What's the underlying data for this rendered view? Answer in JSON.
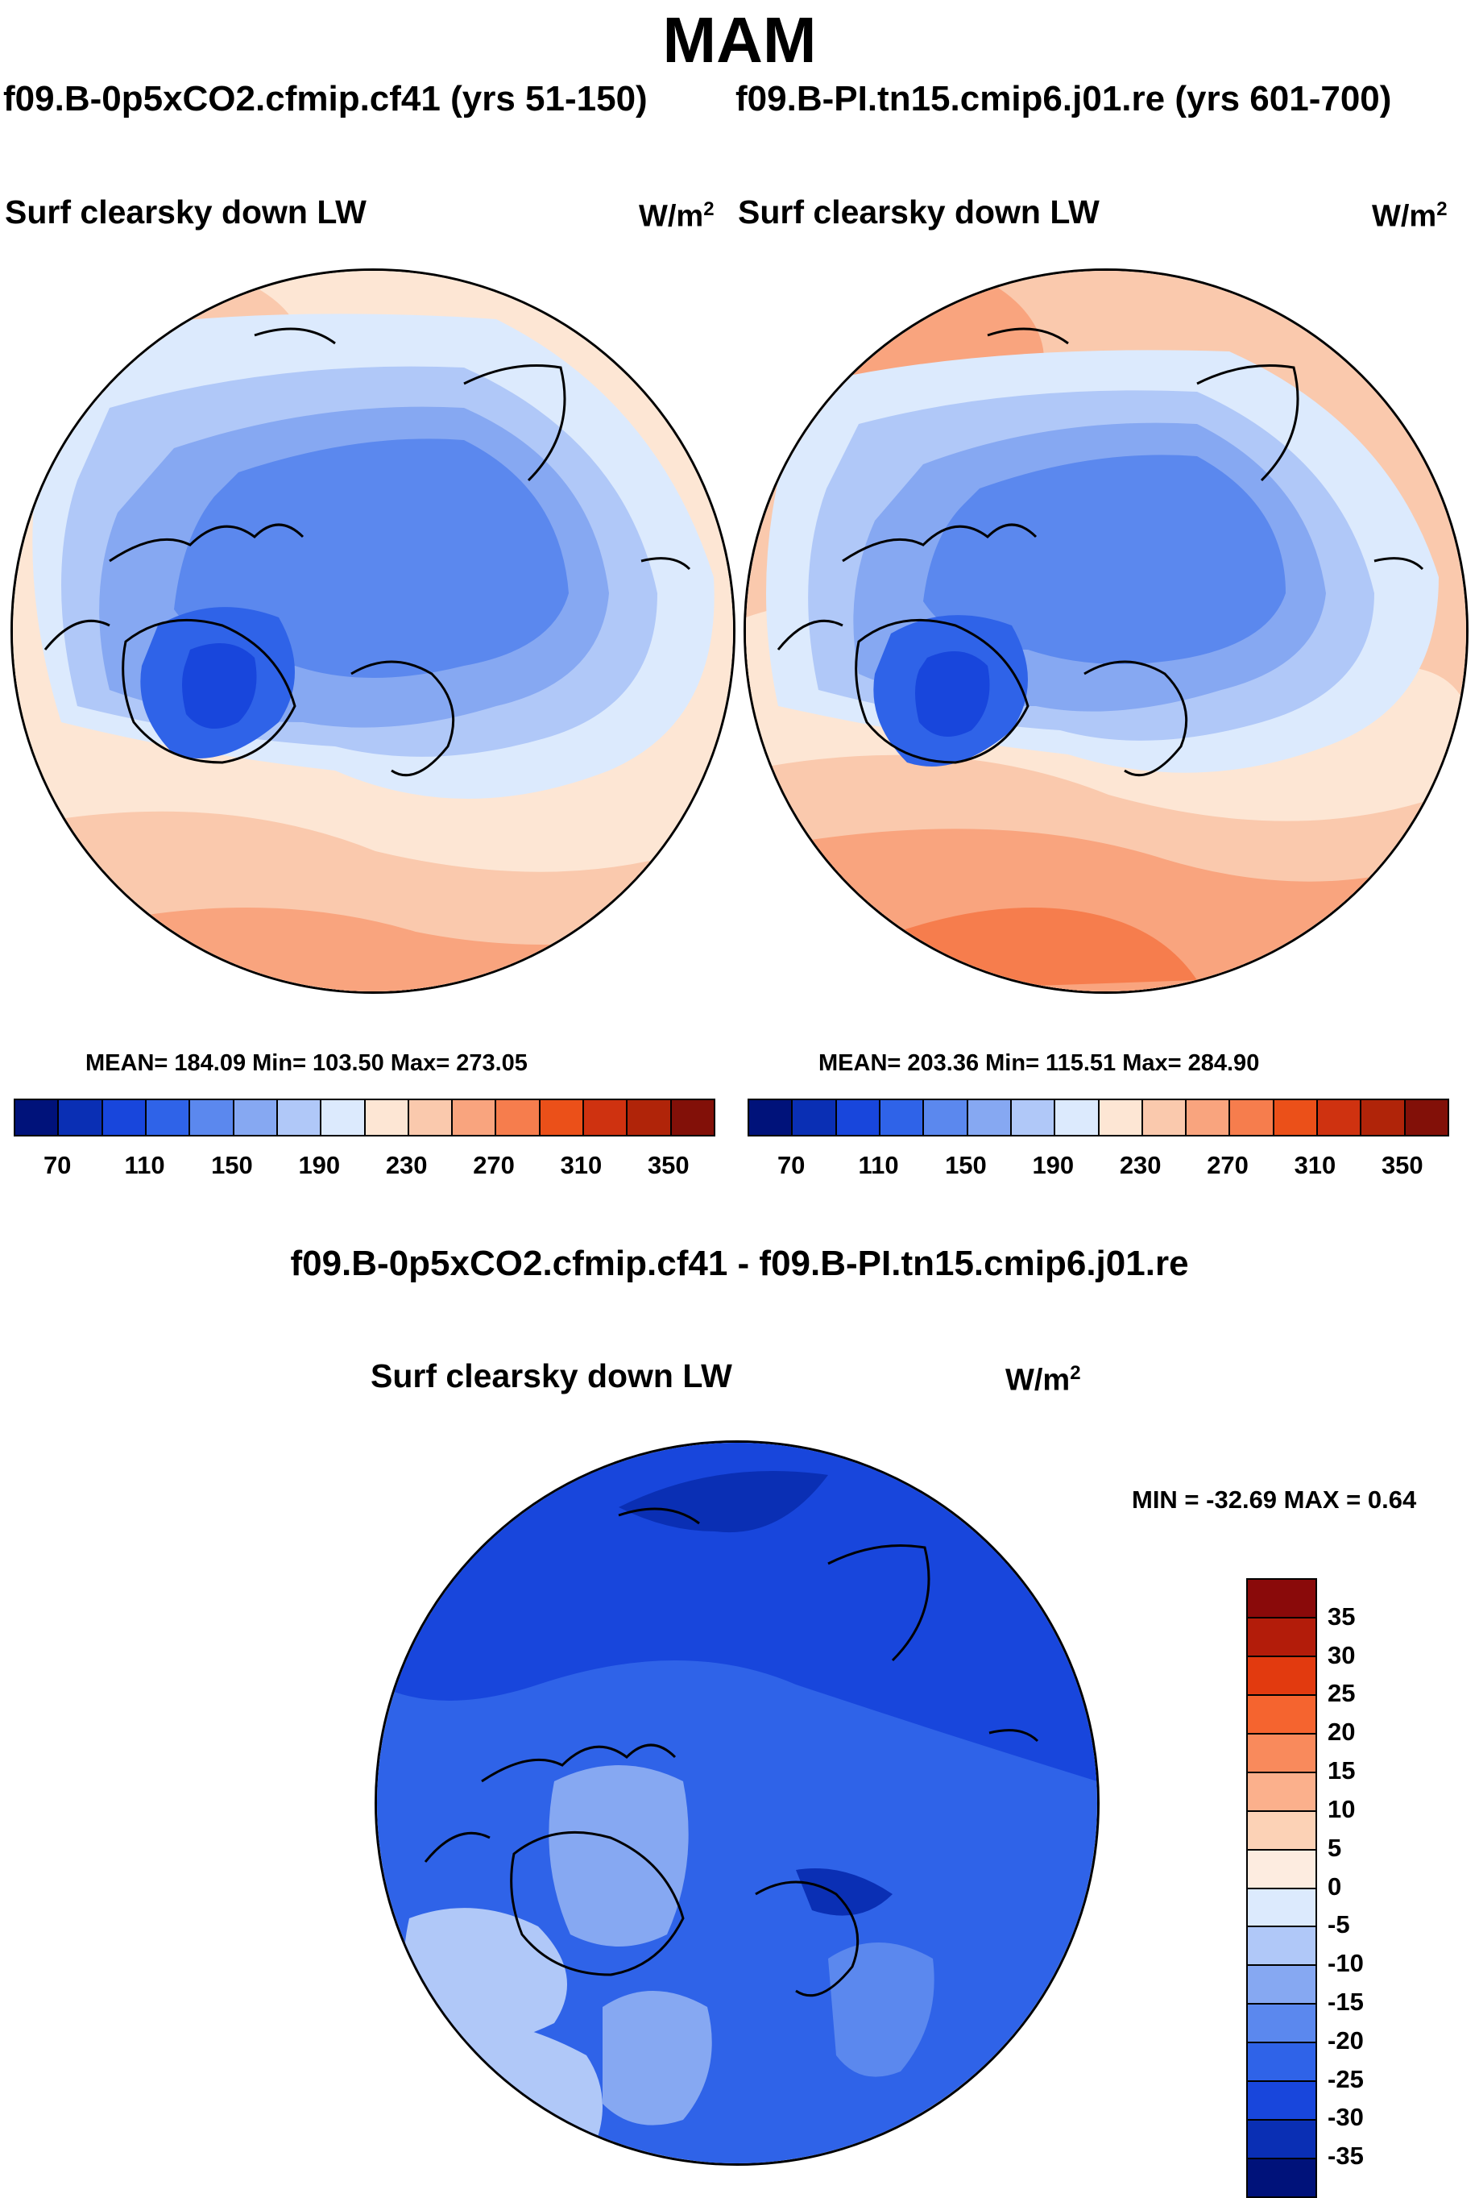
{
  "season": "MAM",
  "case1": "f09.B-0p5xCO2.cfmip.cf41 (yrs 51-150)",
  "case2": "f09.B-PI.tn15.cmip6.j01.re (yrs 601-700)",
  "panels": [
    {
      "title": "Surf clearsky down LW",
      "units": "W/m",
      "units_exp": "2",
      "stats": "MEAN= 184.09  Min= 103.50  Max= 273.05"
    },
    {
      "title": "Surf clearsky down LW",
      "units": "W/m",
      "units_exp": "2",
      "stats": "MEAN= 203.36  Min= 115.51  Max= 284.90"
    }
  ],
  "colorbar": {
    "colors": [
      "#00127a",
      "#0a2fb4",
      "#1846dc",
      "#2f63e8",
      "#5b88ee",
      "#86a8f2",
      "#b0c8f8",
      "#dceafd",
      "#fde6d4",
      "#fac9ad",
      "#f9a47e",
      "#f67d4d",
      "#eb5019",
      "#cf3210",
      "#b02409",
      "#821008"
    ],
    "tick_labels": [
      "70",
      "110",
      "150",
      "190",
      "230",
      "270",
      "310",
      "350"
    ]
  },
  "diff": {
    "title": "f09.B-0p5xCO2.cfmip.cf41 - f09.B-PI.tn15.cmip6.j01.re",
    "panel_title": "Surf clearsky down LW",
    "units": "W/m",
    "units_exp": "2",
    "minmax": "MIN = -32.69 MAX =   0.64",
    "colorbar": {
      "colors": [
        "#8a0a0a",
        "#b31c0a",
        "#e23a0f",
        "#f5642f",
        "#f98a5c",
        "#fbb08c",
        "#fcd2b6",
        "#fdece0",
        "#dceafd",
        "#b0c8f8",
        "#86a8f2",
        "#5b88ee",
        "#2f63e8",
        "#1846dc",
        "#0a2fb4",
        "#00127a"
      ],
      "labels": [
        "35",
        "30",
        "25",
        "20",
        "15",
        "10",
        "5",
        "0",
        "-5",
        "-10",
        "-15",
        "-20",
        "-25",
        "-30",
        "-35"
      ]
    }
  }
}
